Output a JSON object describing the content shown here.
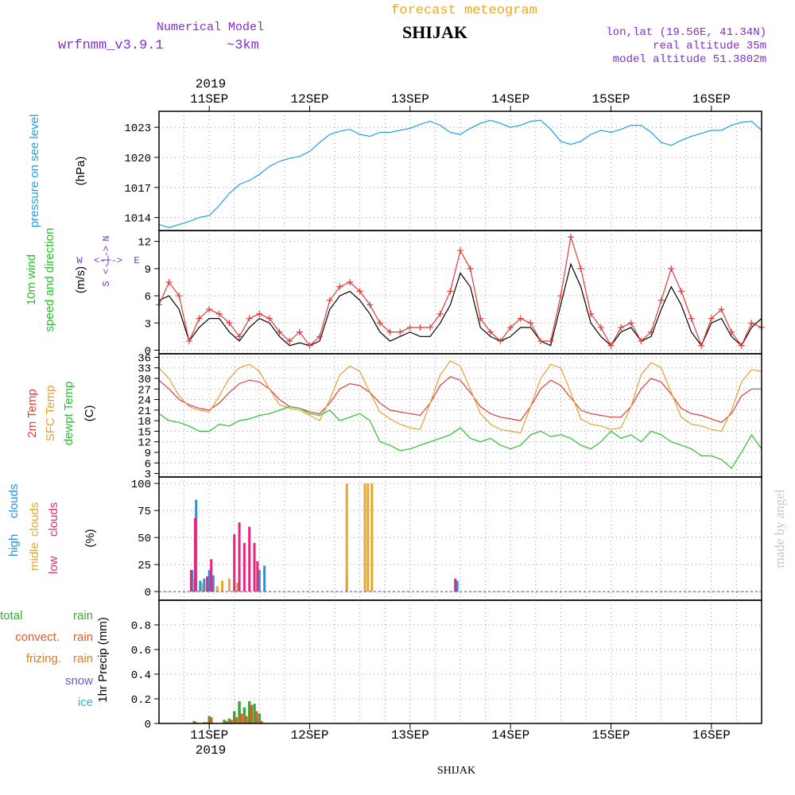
{
  "header": {
    "model_label": "Numerical Model",
    "model_name": "wrfnmm_v3.9.1",
    "resolution": "~3km",
    "chart_kind": "forecast meteogram",
    "station": "SHIJAK",
    "coords": "lon,lat (19.56E, 41.34N)",
    "real_altitude": "real altitude 35m",
    "model_altitude": "model altitude  51.3802m"
  },
  "time_axis": {
    "year": "2019",
    "days": [
      "11SEP",
      "12SEP",
      "13SEP",
      "14SEP",
      "15SEP",
      "16SEP"
    ],
    "day_positions": [
      11,
      12,
      13,
      14,
      15,
      16
    ],
    "range": [
      10.5,
      16.5
    ]
  },
  "watermark": "made by angel",
  "footer_station": "SHIJAK",
  "colors": {
    "pressure": "#1ea0e6",
    "temp2m": "#e03c3c",
    "sfc_temp": "#e6a030",
    "dewpt": "#2cc02c",
    "wind_mean": "#000000",
    "wind_gust": "#e03c3c",
    "high_clouds": "#1e96e6",
    "mid_clouds": "#e6a82a",
    "low_clouds": "#e6287a",
    "total_rain": "#3aa83a",
    "convect_rain": "#e05a28",
    "frizing_rain": "#e07a28",
    "snow": "#6060c8",
    "ice": "#2ab4e6",
    "title_orange": "#e6a82a",
    "title_purple": "#8030c8"
  },
  "chart_data": [
    {
      "type": "line",
      "panel": "pressure",
      "ylabel_name": "pressure on see level",
      "ylabel_unit": "(hPa)",
      "yticks": [
        1014,
        1017,
        1020,
        1023
      ],
      "ylim": [
        1012.7,
        1024.6
      ],
      "grid": true,
      "series": [
        {
          "x": [
            10.5,
            10.6,
            10.7,
            10.8,
            10.9,
            11.0,
            11.1,
            11.15,
            11.2,
            11.3,
            11.35,
            11.4,
            11.5,
            11.6,
            11.7,
            11.8,
            11.9,
            12.0,
            12.1,
            12.2,
            12.3,
            12.4,
            12.5,
            12.6,
            12.7,
            12.8,
            12.9,
            13.0,
            13.1,
            13.2,
            13.3,
            13.4,
            13.5,
            13.6,
            13.7,
            13.8,
            13.9,
            14.0,
            14.1,
            14.2,
            14.3,
            14.4,
            14.5,
            14.6,
            14.7,
            14.8,
            14.9,
            15.0,
            15.1,
            15.2,
            15.3,
            15.4,
            15.5,
            15.6,
            15.7,
            15.8,
            15.9,
            16.0,
            16.1,
            16.2,
            16.3,
            16.4,
            16.5
          ],
          "y": [
            1013.3,
            1013.0,
            1013.3,
            1013.6,
            1014.0,
            1014.2,
            1015.2,
            1015.8,
            1016.4,
            1017.3,
            1017.5,
            1017.7,
            1018.3,
            1019.1,
            1019.6,
            1019.9,
            1020.1,
            1020.6,
            1021.5,
            1022.3,
            1022.6,
            1022.8,
            1022.3,
            1022.1,
            1022.5,
            1022.5,
            1022.7,
            1022.9,
            1023.3,
            1023.6,
            1023.2,
            1022.5,
            1022.3,
            1022.9,
            1023.4,
            1023.7,
            1023.4,
            1023.0,
            1023.2,
            1023.6,
            1023.7,
            1022.8,
            1021.6,
            1021.3,
            1021.6,
            1022.3,
            1022.7,
            1022.5,
            1022.8,
            1023.2,
            1023.2,
            1022.5,
            1021.5,
            1021.2,
            1021.7,
            1022.1,
            1022.4,
            1022.7,
            1022.7,
            1023.2,
            1023.5,
            1023.6,
            1022.7
          ]
        }
      ]
    },
    {
      "type": "line",
      "panel": "wind",
      "ylabel_name": "10m wind",
      "ylabel_sub": "speed and direction",
      "ylabel_unit": "(m/s)",
      "compass": {
        "w": "W",
        "e": "E",
        "n": "N",
        "s": "S"
      },
      "yticks": [
        0,
        3,
        6,
        9,
        12
      ],
      "ylim": [
        -0.4,
        13.2
      ],
      "grid": true,
      "series": [
        {
          "x": [
            10.5,
            10.6,
            10.7,
            10.8,
            10.9,
            11.0,
            11.1,
            11.2,
            11.3,
            11.4,
            11.5,
            11.6,
            11.7,
            11.8,
            11.9,
            12.0,
            12.1,
            12.2,
            12.3,
            12.4,
            12.5,
            12.6,
            12.7,
            12.8,
            12.9,
            13.0,
            13.1,
            13.2,
            13.3,
            13.4,
            13.5,
            13.6,
            13.7,
            13.8,
            13.9,
            14.0,
            14.1,
            14.2,
            14.3,
            14.4,
            14.5,
            14.6,
            14.7,
            14.8,
            14.9,
            15.0,
            15.1,
            15.2,
            15.3,
            15.4,
            15.5,
            15.6,
            15.7,
            15.8,
            15.9,
            16.0,
            16.1,
            16.2,
            16.3,
            16.4,
            16.5
          ],
          "y": [
            5.5,
            6.0,
            4.5,
            1.0,
            2.5,
            3.5,
            3.5,
            2.0,
            1.0,
            2.5,
            3.5,
            3.0,
            1.5,
            0.5,
            0.8,
            0.5,
            1.0,
            4.5,
            6.0,
            6.5,
            5.5,
            4.0,
            2.0,
            1.0,
            1.5,
            2.0,
            1.5,
            1.5,
            3.0,
            5.0,
            8.5,
            7.0,
            2.5,
            1.5,
            1.0,
            1.5,
            2.5,
            2.5,
            1.0,
            0.5,
            5.0,
            9.5,
            7.0,
            3.0,
            1.5,
            0.5,
            2.0,
            2.5,
            1.0,
            1.5,
            4.5,
            7.0,
            5.0,
            2.0,
            0.5,
            3.0,
            3.5,
            1.5,
            0.5,
            2.5,
            3.5
          ]
        },
        {
          "x": [
            10.5,
            10.6,
            10.7,
            10.8,
            10.9,
            11.0,
            11.1,
            11.2,
            11.3,
            11.4,
            11.5,
            11.6,
            11.7,
            11.8,
            11.9,
            12.0,
            12.1,
            12.2,
            12.3,
            12.4,
            12.5,
            12.6,
            12.7,
            12.8,
            12.9,
            13.0,
            13.1,
            13.2,
            13.3,
            13.4,
            13.5,
            13.6,
            13.7,
            13.8,
            13.9,
            14.0,
            14.1,
            14.2,
            14.3,
            14.4,
            14.5,
            14.6,
            14.7,
            14.8,
            14.9,
            15.0,
            15.1,
            15.2,
            15.3,
            15.4,
            15.5,
            15.6,
            15.7,
            15.8,
            15.9,
            16.0,
            16.1,
            16.2,
            16.3,
            16.4,
            16.5
          ],
          "y": [
            5.0,
            7.5,
            6.0,
            1.0,
            3.5,
            4.5,
            4.0,
            3.0,
            1.5,
            3.5,
            4.0,
            3.5,
            2.0,
            1.0,
            2.0,
            0.5,
            1.5,
            5.5,
            7.0,
            7.5,
            6.5,
            5.0,
            3.0,
            2.0,
            2.0,
            2.5,
            2.5,
            2.5,
            4.0,
            6.5,
            11.0,
            9.0,
            3.5,
            2.0,
            1.0,
            2.5,
            3.5,
            3.0,
            1.0,
            1.0,
            6.0,
            12.5,
            9.0,
            4.0,
            2.5,
            0.5,
            2.5,
            3.0,
            1.0,
            2.0,
            5.5,
            9.0,
            6.5,
            3.5,
            0.5,
            3.5,
            4.5,
            2.0,
            0.5,
            3.0,
            2.5
          ]
        }
      ]
    },
    {
      "type": "line",
      "panel": "temperature",
      "ylabel_2m": "2m Temp",
      "ylabel_sfc": "SFC Temp",
      "ylabel_dew": "dewpt Temp",
      "ylabel_unit": "(C)",
      "yticks": [
        3,
        6,
        9,
        12,
        15,
        18,
        21,
        24,
        27,
        30,
        33,
        36
      ],
      "ylim": [
        2,
        37
      ],
      "grid": true,
      "series": [
        {
          "x": [
            10.5,
            10.6,
            10.7,
            10.8,
            10.9,
            11.0,
            11.1,
            11.2,
            11.3,
            11.4,
            11.5,
            11.6,
            11.7,
            11.8,
            11.9,
            12.0,
            12.1,
            12.2,
            12.3,
            12.4,
            12.5,
            12.6,
            12.7,
            12.8,
            12.9,
            13.0,
            13.1,
            13.2,
            13.3,
            13.4,
            13.5,
            13.6,
            13.7,
            13.8,
            13.9,
            14.0,
            14.1,
            14.2,
            14.3,
            14.4,
            14.5,
            14.6,
            14.7,
            14.8,
            14.9,
            15.0,
            15.1,
            15.2,
            15.3,
            15.4,
            15.5,
            15.6,
            15.7,
            15.8,
            15.9,
            16.0,
            16.1,
            16.2,
            16.3,
            16.4,
            16.5
          ],
          "y": [
            29.5,
            27,
            24,
            22.5,
            21.5,
            21,
            23,
            26,
            28.5,
            29.5,
            29,
            27,
            24,
            22,
            21.5,
            20.5,
            20,
            23,
            27,
            28.5,
            28,
            26,
            23,
            21,
            20.5,
            20,
            19.5,
            23,
            28,
            30.5,
            29.5,
            26,
            22,
            20,
            19,
            18.5,
            18,
            22,
            27,
            29.5,
            28,
            24.5,
            21,
            20,
            19.5,
            19,
            19,
            22,
            27,
            30,
            29,
            25.5,
            21.5,
            20,
            19.5,
            18.5,
            17.5,
            20,
            25,
            27,
            27
          ]
        },
        {
          "x": [
            10.5,
            10.6,
            10.7,
            10.8,
            10.9,
            11.0,
            11.1,
            11.2,
            11.3,
            11.4,
            11.5,
            11.6,
            11.7,
            11.8,
            11.9,
            12.0,
            12.1,
            12.2,
            12.3,
            12.4,
            12.5,
            12.6,
            12.7,
            12.8,
            12.9,
            13.0,
            13.1,
            13.2,
            13.3,
            13.4,
            13.5,
            13.6,
            13.7,
            13.8,
            13.9,
            14.0,
            14.1,
            14.2,
            14.3,
            14.4,
            14.5,
            14.6,
            14.7,
            14.8,
            14.9,
            15.0,
            15.1,
            15.2,
            15.3,
            15.4,
            15.5,
            15.6,
            15.7,
            15.8,
            15.9,
            16.0,
            16.1,
            16.2,
            16.3,
            16.4,
            16.5
          ],
          "y": [
            33,
            30,
            25,
            22,
            21,
            20.5,
            25,
            30,
            33,
            34,
            32,
            27,
            22.5,
            21.5,
            21,
            19.5,
            18,
            24,
            31,
            33.5,
            32,
            26,
            20.5,
            18.5,
            17,
            16,
            15.5,
            23,
            31,
            35,
            33.5,
            27,
            20,
            17,
            15.5,
            15,
            14.5,
            22,
            30,
            34,
            33,
            26,
            18.5,
            17,
            16.5,
            15.5,
            16,
            22,
            31,
            34.5,
            33,
            26,
            19,
            17,
            16.5,
            15.5,
            15,
            21,
            29,
            32.5,
            32
          ]
        },
        {
          "x": [
            10.5,
            10.6,
            10.7,
            10.8,
            10.9,
            11.0,
            11.1,
            11.2,
            11.3,
            11.4,
            11.5,
            11.6,
            11.7,
            11.8,
            11.9,
            12.0,
            12.1,
            12.2,
            12.3,
            12.4,
            12.5,
            12.6,
            12.7,
            12.8,
            12.9,
            13.0,
            13.1,
            13.2,
            13.3,
            13.4,
            13.5,
            13.6,
            13.7,
            13.8,
            13.9,
            14.0,
            14.1,
            14.2,
            14.3,
            14.4,
            14.5,
            14.6,
            14.7,
            14.8,
            14.9,
            15.0,
            15.1,
            15.2,
            15.3,
            15.4,
            15.5,
            15.6,
            15.7,
            15.8,
            15.9,
            16.0,
            16.1,
            16.2,
            16.3,
            16.4,
            16.5
          ],
          "y": [
            20,
            18,
            17.5,
            16.5,
            15,
            15,
            17,
            16.5,
            18,
            18.5,
            19.5,
            20,
            21,
            22,
            21.5,
            20,
            19.5,
            21,
            18,
            19,
            20,
            18,
            12,
            11,
            9.5,
            10,
            11,
            12,
            13,
            14,
            16,
            13,
            12,
            13,
            11,
            10,
            11,
            14,
            15,
            13.5,
            14,
            13,
            11,
            10,
            12,
            15,
            13,
            14,
            12,
            15,
            14,
            12,
            11,
            10,
            8,
            8,
            7,
            4.5,
            9,
            14,
            10
          ]
        }
      ]
    },
    {
      "type": "bar",
      "panel": "clouds",
      "ylabel_high": "high",
      "ylabel_mid": "midle",
      "ylabel_low": "low",
      "ylabel_word": "clouds",
      "ylabel_unit": "(%)",
      "yticks": [
        0,
        25,
        50,
        75,
        100
      ],
      "ylim": [
        -8,
        106
      ],
      "grid": true,
      "series": [
        {
          "name": "high clouds",
          "x": [
            10.83,
            10.87,
            10.91,
            10.95,
            11.0,
            11.04,
            11.5,
            11.55,
            12.37,
            13.47
          ],
          "y": [
            20,
            85,
            10,
            12,
            20,
            15,
            20,
            24,
            15,
            10
          ]
        },
        {
          "name": "midle clouds",
          "x": [
            10.85,
            10.93,
            11.08,
            11.13,
            11.2,
            11.28,
            12.37,
            12.55,
            12.58,
            12.62
          ],
          "y": [
            12,
            8,
            5,
            10,
            12,
            8,
            100,
            100,
            100,
            100
          ]
        },
        {
          "name": "low clouds",
          "x": [
            10.82,
            10.86,
            10.98,
            11.02,
            11.25,
            11.3,
            11.35,
            11.4,
            11.45,
            11.48,
            13.45
          ],
          "y": [
            20,
            68,
            14,
            30,
            53,
            64,
            45,
            60,
            45,
            28,
            12
          ]
        }
      ]
    },
    {
      "type": "bar",
      "panel": "precip",
      "ylabel_total": "total",
      "ylabel_rain": "rain",
      "ylabel_convect": "convect.",
      "ylabel_frizing": "frizing.",
      "ylabel_snow": "snow",
      "ylabel_ice": "ice",
      "ylabel_unit": "1hr Precip (mm)",
      "yticks": [
        0,
        0.2,
        0.4,
        0.6,
        0.8
      ],
      "ylim": [
        0,
        1.0
      ],
      "grid": true,
      "series": [
        {
          "name": "total rain",
          "x": [
            10.85,
            10.95,
            11.0,
            11.15,
            11.2,
            11.25,
            11.3,
            11.35,
            11.4,
            11.45,
            11.5
          ],
          "y": [
            0.02,
            0.01,
            0.06,
            0.03,
            0.04,
            0.1,
            0.18,
            0.13,
            0.18,
            0.16,
            0.08
          ]
        },
        {
          "name": "convect. rain",
          "x": [
            10.87,
            10.97,
            11.02,
            11.17,
            11.22,
            11.27,
            11.32,
            11.37,
            11.42,
            11.47,
            11.52
          ],
          "y": [
            0.01,
            0.01,
            0.05,
            0.02,
            0.03,
            0.05,
            0.08,
            0.06,
            0.15,
            0.1,
            0.02
          ]
        }
      ]
    }
  ]
}
